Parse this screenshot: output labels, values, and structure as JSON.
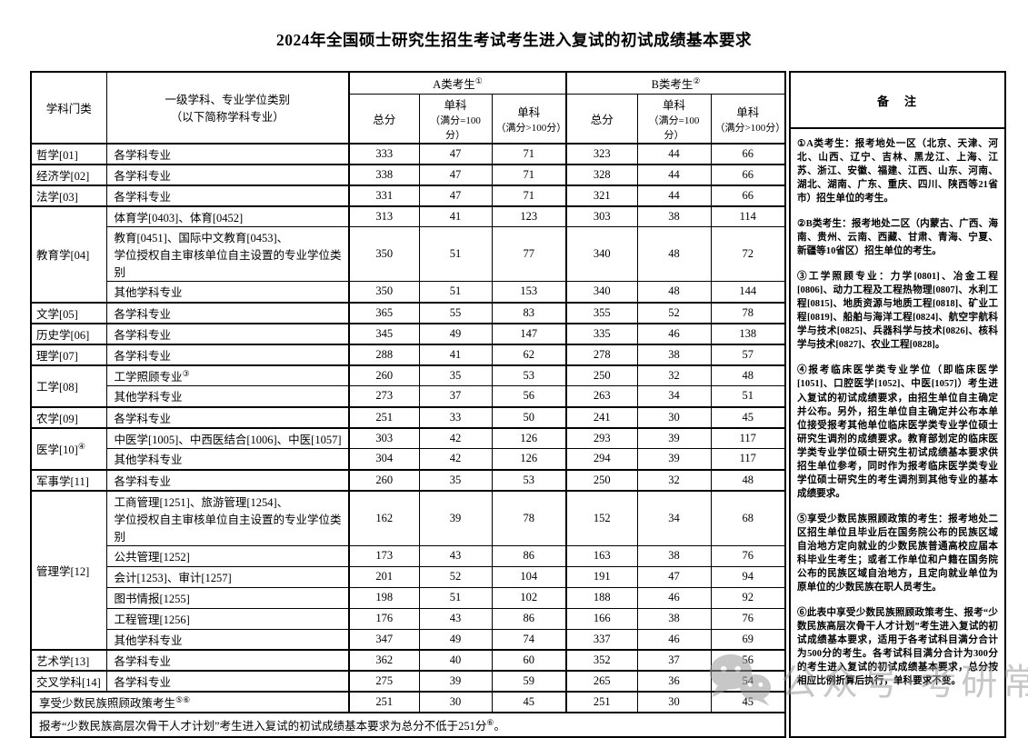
{
  "page": {
    "title": "2024年全国硕士研究生招生考试考生进入复试的初试成绩基本要求"
  },
  "header": {
    "category": "学科门类",
    "major_line1": "一级学科、专业学位类别",
    "major_line2": "（以下简称学科专业）",
    "group_a": "A类考生",
    "group_a_sup": "①",
    "group_b": "B类考生",
    "group_b_sup": "②",
    "total": "总分",
    "single": "单科",
    "single_eq": "（满分=100分）",
    "single_gt": "（满分>100分）",
    "remark": "备　注"
  },
  "rows": [
    {
      "cat": "哲学[01]",
      "span": 1,
      "major": "各学科专业",
      "a": [
        "333",
        "47",
        "71"
      ],
      "b": [
        "323",
        "44",
        "66"
      ],
      "section": true
    },
    {
      "cat": "经济学[02]",
      "span": 1,
      "major": "各学科专业",
      "a": [
        "338",
        "47",
        "71"
      ],
      "b": [
        "328",
        "44",
        "66"
      ],
      "section": true
    },
    {
      "cat": "法学[03]",
      "span": 1,
      "major": "各学科专业",
      "a": [
        "331",
        "47",
        "71"
      ],
      "b": [
        "321",
        "44",
        "66"
      ],
      "section": true
    },
    {
      "cat": "教育学[04]",
      "span": 3,
      "major": "体育学[0403]、体育[0452]",
      "a": [
        "313",
        "41",
        "123"
      ],
      "b": [
        "303",
        "38",
        "114"
      ],
      "section": true
    },
    {
      "major": "教育[0451]、国际中文教育[0453]、\n学位授权自主审核单位自主设置的专业学位类别",
      "a": [
        "350",
        "51",
        "77"
      ],
      "b": [
        "340",
        "48",
        "72"
      ],
      "tall": true
    },
    {
      "major": "其他学科专业",
      "a": [
        "350",
        "51",
        "153"
      ],
      "b": [
        "340",
        "48",
        "144"
      ]
    },
    {
      "cat": "文学[05]",
      "span": 1,
      "major": "各学科专业",
      "a": [
        "365",
        "55",
        "83"
      ],
      "b": [
        "355",
        "52",
        "78"
      ],
      "section": true
    },
    {
      "cat": "历史学[06]",
      "span": 1,
      "major": "各学科专业",
      "a": [
        "345",
        "49",
        "147"
      ],
      "b": [
        "335",
        "46",
        "138"
      ],
      "section": true
    },
    {
      "cat": "理学[07]",
      "span": 1,
      "major": "各学科专业",
      "a": [
        "288",
        "41",
        "62"
      ],
      "b": [
        "278",
        "38",
        "57"
      ],
      "section": true
    },
    {
      "cat": "工学[08]",
      "span": 2,
      "major": "工学照顾专业",
      "major_sup": "③",
      "a": [
        "260",
        "35",
        "53"
      ],
      "b": [
        "250",
        "32",
        "48"
      ],
      "section": true
    },
    {
      "major": "其他学科专业",
      "a": [
        "273",
        "37",
        "56"
      ],
      "b": [
        "263",
        "34",
        "51"
      ]
    },
    {
      "cat": "农学[09]",
      "span": 1,
      "major": "各学科专业",
      "a": [
        "251",
        "33",
        "50"
      ],
      "b": [
        "241",
        "30",
        "45"
      ],
      "section": true
    },
    {
      "cat": "医学[10]",
      "cat_sup": "④",
      "span": 2,
      "major": "中医学[1005]、中西医结合[1006]、中医[1057]",
      "a": [
        "303",
        "42",
        "126"
      ],
      "b": [
        "293",
        "39",
        "117"
      ],
      "section": true
    },
    {
      "major": "其他学科专业",
      "a": [
        "304",
        "42",
        "126"
      ],
      "b": [
        "294",
        "39",
        "117"
      ]
    },
    {
      "cat": "军事学[11]",
      "span": 1,
      "major": "各学科专业",
      "a": [
        "260",
        "35",
        "53"
      ],
      "b": [
        "250",
        "32",
        "48"
      ],
      "section": true
    },
    {
      "cat": "管理学[12]",
      "span": 6,
      "major": "工商管理[1251]、旅游管理[1254]、\n学位授权自主审核单位自主设置的专业学位类别",
      "a": [
        "162",
        "39",
        "78"
      ],
      "b": [
        "152",
        "34",
        "68"
      ],
      "section": true,
      "tall": true
    },
    {
      "major": "公共管理[1252]",
      "a": [
        "173",
        "43",
        "86"
      ],
      "b": [
        "163",
        "38",
        "76"
      ]
    },
    {
      "major": "会计[1253]、审计[1257]",
      "a": [
        "201",
        "52",
        "104"
      ],
      "b": [
        "191",
        "47",
        "94"
      ]
    },
    {
      "major": "图书情报[1255]",
      "a": [
        "198",
        "51",
        "102"
      ],
      "b": [
        "188",
        "46",
        "92"
      ]
    },
    {
      "major": "工程管理[1256]",
      "a": [
        "176",
        "43",
        "86"
      ],
      "b": [
        "166",
        "38",
        "76"
      ]
    },
    {
      "major": "其他学科专业",
      "a": [
        "347",
        "49",
        "74"
      ],
      "b": [
        "337",
        "46",
        "69"
      ]
    },
    {
      "cat": "艺术学[13]",
      "span": 1,
      "major": "各学科专业",
      "a": [
        "362",
        "40",
        "60"
      ],
      "b": [
        "352",
        "37",
        "56"
      ],
      "section": true
    },
    {
      "cat": "交叉学科[14]",
      "span": 1,
      "major": "各学科专业",
      "a": [
        "275",
        "39",
        "59"
      ],
      "b": [
        "265",
        "36",
        "54"
      ],
      "section": true
    },
    {
      "label2": "享受少数民族照顾政策考生",
      "label2_sup": "⑤⑥",
      "a": [
        "251",
        "30",
        "45"
      ],
      "b": [
        "251",
        "30",
        "45"
      ],
      "section": true
    }
  ],
  "footer_note": {
    "pre": "报考“少数民族高层次骨干人才计划”考生进入复试的初试成绩基本要求为总分不低于251分",
    "sup": "⑥",
    "post": "。"
  },
  "remarks": [
    "①A类考生：报考地处一区（北京、天津、河北、山西、辽宁、吉林、黑龙江、上海、江苏、浙江、安徽、福建、江西、山东、河南、湖北、湖南、广东、重庆、四川、陕西等21省市）招生单位的考生。",
    "②B类考生：报考地处二区（内蒙古、广西、海南、贵州、云南、西藏、甘肃、青海、宁夏、新疆等10省区）招生单位的考生。",
    "③工学照顾专业：力学[0801]、冶金工程[0806]、动力工程及工程热物理[0807]、水利工程[0815]、地质资源与地质工程[0818]、矿业工程[0819]、船舶与海洋工程[0824]、航空宇航科学与技术[0825]、兵器科学与技术[0826]、核科学与技术[0827]、农业工程[0828]。",
    "④报考临床医学类专业学位（即临床医学[1051]、口腔医学[1052]、中医[1057]）考生进入复试的初试成绩要求，由招生单位自主确定并公布。另外，招生单位自主确定并公布本单位接受报考其他单位临床医学类专业学位硕士研究生调剂的成绩要求。教育部划定的临床医学类专业学位硕士研究生初试成绩基本要求供招生单位参考，同时作为报考临床医学类专业学位硕士研究生的考生调剂到其他专业的基本成绩要求。",
    "⑤享受少数民族照顾政策的考生：报考地处二区招生单位且毕业后在国务院公布的民族区域自治地方定向就业的少数民族普通高校应届本科毕业生考生；或者工作单位和户籍在国务院公布的民族区域自治地方，且定向就业单位为原单位的少数民族在职人员考生。",
    "⑥此表中享受少数民族照顾政策考生、报考“少数民族高层次骨干人才计划”考生进入复试的初试成绩基本要求，适用于各考试科目满分合计为500分的考生。各考试科目满分合计为300分的考生进入复试的初试成绩基本要求，总分按相应比例折算后执行，单科要求不变。"
  ],
  "watermark": {
    "text": "公众号·考研常识",
    "icon": "wechat-icon",
    "color": "#9a9a9a"
  }
}
